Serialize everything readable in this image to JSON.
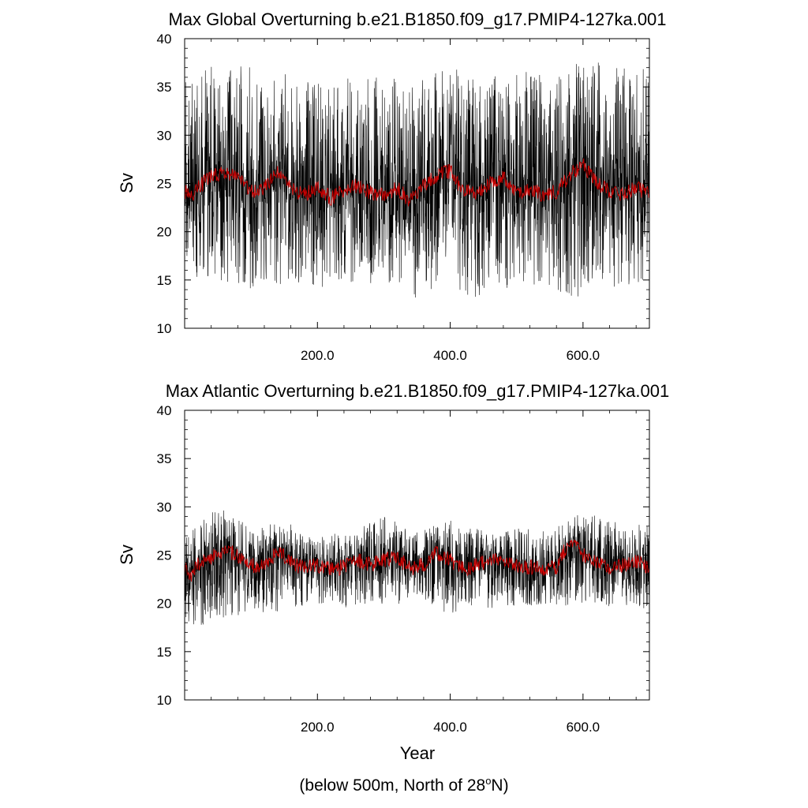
{
  "colors": {
    "series_fill": "#000000",
    "running_mean": "#cc0000",
    "axes": "#000000",
    "background": "#ffffff"
  },
  "figure": {
    "xlabel": "Year",
    "footnote": {
      "prefix": "(below 500m, North of 28",
      "superscript": "o",
      "suffix": "N)"
    }
  },
  "chart_data": [
    {
      "type": "line",
      "title": "Max Global Overturning b.e21.B1850.f09_g17.PMIP4-127ka.001",
      "ylabel": "Sv",
      "xlabel": "",
      "xlim": [
        0,
        700
      ],
      "ylim": [
        10,
        40
      ],
      "x_ticks": [
        200,
        400,
        600
      ],
      "x_tick_labels": [
        "200.0",
        "400.0",
        "600.0"
      ],
      "y_ticks": [
        10,
        15,
        20,
        25,
        30,
        35,
        40
      ],
      "y_tick_labels": [
        "10",
        "15",
        "20",
        "25",
        "30",
        "35",
        "40"
      ],
      "grid": false,
      "series": [
        {
          "style": "black thin monthly lines",
          "x": [
            0,
            50,
            100,
            150,
            200,
            250,
            300,
            350,
            400,
            450,
            500,
            550,
            600,
            650,
            700
          ],
          "y_min": [
            15,
            15,
            14,
            14.5,
            14,
            14,
            15,
            13,
            14,
            13,
            14,
            14,
            13,
            14,
            15
          ],
          "y_max": [
            36,
            38,
            37,
            36.5,
            36,
            36,
            36,
            36,
            37,
            36,
            37,
            36,
            39,
            37,
            37
          ]
        },
        {
          "style": "red running mean",
          "x": [
            0,
            10,
            20,
            40,
            60,
            80,
            100,
            120,
            140,
            160,
            180,
            200,
            220,
            240,
            260,
            280,
            300,
            320,
            340,
            360,
            380,
            400,
            420,
            440,
            460,
            480,
            500,
            520,
            540,
            560,
            580,
            600,
            620,
            640,
            660,
            680,
            700
          ],
          "y": [
            24.2,
            23.5,
            24.5,
            25.8,
            26.2,
            25.5,
            24.2,
            24.5,
            26.0,
            24.5,
            23.8,
            24.5,
            23.5,
            24.2,
            24.8,
            24.0,
            23.8,
            24.5,
            23.2,
            24.8,
            25.8,
            26.3,
            24.2,
            24.0,
            25.0,
            25.8,
            24.0,
            24.5,
            23.8,
            24.2,
            25.8,
            27.0,
            25.0,
            24.2,
            23.8,
            24.5,
            24.0
          ]
        }
      ]
    },
    {
      "type": "line",
      "title": "Max Atlantic Overturning b.e21.B1850.f09_g17.PMIP4-127ka.001",
      "ylabel": "Sv",
      "xlabel": "Year",
      "xlim": [
        0,
        700
      ],
      "ylim": [
        10,
        40
      ],
      "x_ticks": [
        200,
        400,
        600
      ],
      "x_tick_labels": [
        "200.0",
        "400.0",
        "600.0"
      ],
      "y_ticks": [
        10,
        15,
        20,
        25,
        30,
        35,
        40
      ],
      "y_tick_labels": [
        "10",
        "15",
        "20",
        "25",
        "30",
        "35",
        "40"
      ],
      "grid": false,
      "series": [
        {
          "style": "black thin monthly lines",
          "x": [
            0,
            50,
            100,
            150,
            200,
            250,
            300,
            350,
            400,
            450,
            500,
            550,
            600,
            650,
            700
          ],
          "y_min": [
            17.5,
            18,
            19,
            19,
            20,
            19.5,
            20,
            19.5,
            19,
            19.5,
            19.5,
            20,
            19.5,
            19.5,
            19.5
          ],
          "y_max": [
            27,
            30,
            28,
            28.5,
            27,
            27.5,
            29,
            27.5,
            29,
            27.5,
            28,
            27.5,
            29.5,
            28.5,
            28
          ]
        },
        {
          "style": "red running mean",
          "x": [
            0,
            10,
            20,
            40,
            60,
            80,
            100,
            120,
            140,
            160,
            180,
            200,
            220,
            240,
            260,
            280,
            300,
            320,
            340,
            360,
            380,
            400,
            420,
            440,
            460,
            480,
            500,
            520,
            540,
            560,
            580,
            600,
            620,
            640,
            660,
            680,
            700
          ],
          "y": [
            23.5,
            23.0,
            24.0,
            24.8,
            25.5,
            25.0,
            24.0,
            23.8,
            25.5,
            24.2,
            23.6,
            24.0,
            23.5,
            23.8,
            24.5,
            24.0,
            24.5,
            24.8,
            23.6,
            24.0,
            25.2,
            24.5,
            23.5,
            24.0,
            24.5,
            24.2,
            23.8,
            23.8,
            23.5,
            23.8,
            26.5,
            25.0,
            24.2,
            23.8,
            24.0,
            24.3,
            23.8
          ]
        }
      ]
    }
  ]
}
